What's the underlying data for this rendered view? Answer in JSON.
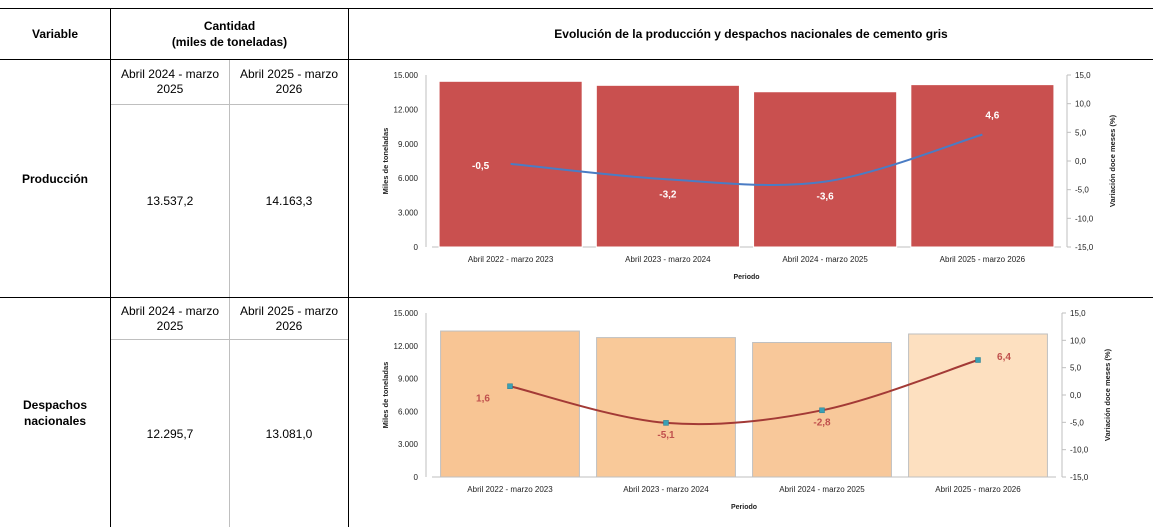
{
  "header": {
    "variable": "Variable",
    "cantidad_line1": "Cantidad",
    "cantidad_line2": "(miles de toneladas)",
    "chart_title": "Evolución de la producción y despachos nacionales de cemento gris"
  },
  "rows": [
    {
      "label_line1": "Producción",
      "label_line2": "",
      "period1": "Abril 2024 - marzo 2025",
      "period1_a": "Abril 2024 - marzo",
      "period1_b": "2025",
      "period2_a": "Abril 2025 - marzo",
      "period2_b": "2026",
      "value1": "13.537,2",
      "value2": "14.163,3"
    },
    {
      "label_line1": "Despachos",
      "label_line2": "nacionales",
      "period1_a": "Abril 2024 - marzo",
      "period1_b": "2025",
      "period2_a": "Abril 2025 - marzo",
      "period2_b": "2026",
      "value1": "12.295,7",
      "value2": "13.081,0"
    }
  ],
  "colors": {
    "prod_bar": "#c9504f",
    "prod_line": "#4a7cc4",
    "desp_bar_1": "#f8c594",
    "desp_bar_2": "#f9c999",
    "desp_bar_3": "#f8c89a",
    "desp_bar_4": "#fde0c0",
    "desp_line": "#a33a36",
    "desp_marker": "#3aa0b5",
    "desp_label": "#c0504d"
  },
  "chart_data": [
    {
      "type": "bar",
      "categories": [
        "Abril 2022 - marzo 2023",
        "Abril 2023 - marzo 2024",
        "Abril 2024 - marzo 2025",
        "Abril 2025 - marzo 2026"
      ],
      "series": [
        {
          "values": [
            14450,
            14100,
            13540,
            14160
          ]
        },
        {
          "values": [
            -0.5,
            -3.2,
            -3.6,
            4.6
          ],
          "labels": [
            "-0,5",
            "-3,2",
            "-3,6",
            "4,6"
          ]
        }
      ],
      "xlabel": "Periodo",
      "ylabel": "Miles de toneladas",
      "y2label": "Variación doce meses (%)",
      "ylim": [
        0,
        15000
      ],
      "y2lim": [
        -15,
        15
      ],
      "yticks": [
        "0",
        "3.000",
        "6.000",
        "9.000",
        "12.000",
        "15.000"
      ],
      "y2ticks": [
        "-15,0",
        "-10,0",
        "-5,0",
        "0,0",
        "5,0",
        "10,0",
        "15,0"
      ]
    },
    {
      "type": "bar",
      "categories": [
        "Abril 2022 - marzo 2023",
        "Abril 2023 - marzo 2024",
        "Abril 2024 - marzo 2025",
        "Abril 2025 - marzo 2026"
      ],
      "series": [
        {
          "values": [
            13350,
            12750,
            12300,
            13080
          ]
        },
        {
          "values": [
            1.6,
            -5.1,
            -2.8,
            6.4
          ],
          "labels": [
            "1,6",
            "-5,1",
            "-2,8",
            "6,4"
          ]
        }
      ],
      "xlabel": "Periodo",
      "ylabel": "Miles de toneladas",
      "y2label": "Variación doce meses (%)",
      "ylim": [
        0,
        15000
      ],
      "y2lim": [
        -15,
        15
      ],
      "yticks": [
        "0",
        "3.000",
        "6.000",
        "9.000",
        "12.000",
        "15.000"
      ],
      "y2ticks": [
        "-15,0",
        "-10,0",
        "-5,0",
        "0,0",
        "5,0",
        "10,0",
        "15,0"
      ]
    }
  ]
}
